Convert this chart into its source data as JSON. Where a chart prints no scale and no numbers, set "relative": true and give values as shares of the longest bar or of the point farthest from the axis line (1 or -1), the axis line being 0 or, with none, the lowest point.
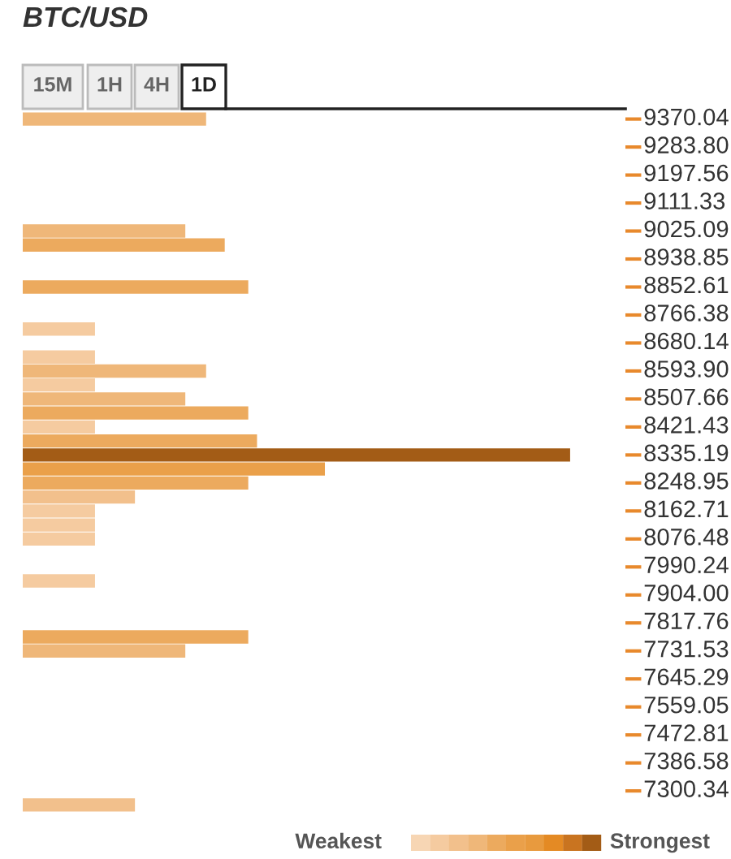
{
  "chart_data": {
    "type": "bar",
    "orientation": "horizontal",
    "relative": true,
    "title": "BTC/USD",
    "categories": [
      "9370.04",
      null,
      "9283.80",
      null,
      "9197.56",
      null,
      "9111.33",
      null,
      "9025.09",
      null,
      "8938.85",
      null,
      "8852.61",
      null,
      "8766.38",
      null,
      "8680.14",
      null,
      "8593.90",
      null,
      "8507.66",
      null,
      "8421.43",
      null,
      "8335.19",
      null,
      "8248.95",
      null,
      "8162.71",
      null,
      "8076.48",
      null,
      "7990.24",
      null,
      "7904.00",
      null,
      "7817.76",
      null,
      "7731.53",
      null,
      "7645.29",
      null,
      "7559.05",
      null,
      "7472.81",
      null,
      "7386.58",
      null,
      "7300.34",
      null
    ],
    "values": [
      0.335,
      null,
      null,
      null,
      null,
      null,
      null,
      null,
      0.297,
      0.369,
      null,
      null,
      0.412,
      null,
      null,
      0.132,
      null,
      0.132,
      0.335,
      0.132,
      0.297,
      0.412,
      0.132,
      0.428,
      1,
      0.552,
      0.412,
      0.205,
      0.132,
      0.132,
      0.132,
      null,
      null,
      0.132,
      null,
      null,
      null,
      0.412,
      0.297,
      null,
      null,
      null,
      null,
      null,
      null,
      null,
      null,
      null,
      null,
      0.205
    ],
    "colors": [
      "#efb779",
      null,
      null,
      null,
      null,
      null,
      null,
      null,
      "#efb779",
      "#ecaa5e",
      null,
      null,
      "#ecaa5e",
      null,
      null,
      "#f5cba0",
      null,
      "#f5cba0",
      "#efb779",
      "#f5cba0",
      "#efb779",
      "#ecaa5e",
      "#f5cba0",
      "#ecaa5e",
      "#a35c16",
      "#eaa04a",
      "#ecaa5e",
      "#f2c08c",
      "#f5cba0",
      "#f5cba0",
      "#f5cba0",
      null,
      null,
      "#f5cba0",
      null,
      null,
      null,
      "#ecaa5e",
      "#efb779",
      null,
      null,
      null,
      null,
      null,
      null,
      null,
      null,
      null,
      null,
      "#f2c08c"
    ],
    "annotations": [
      "15M",
      "1H",
      "4H",
      "1D",
      "Weakest",
      "Strongest"
    ],
    "legend": false,
    "grid": false
  }
}
